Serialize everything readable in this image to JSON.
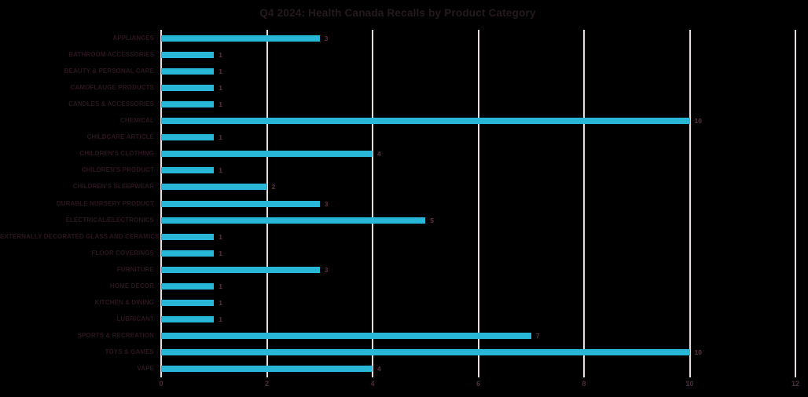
{
  "page": {
    "background_color": "#000000"
  },
  "chart_data": {
    "type": "bar",
    "orientation": "horizontal",
    "title": "Q4 2024: Health Canada Recalls by Product Category",
    "categories": [
      "APPLIANCES",
      "BATHROOM ACCESSORIES",
      "BEAUTY & PERSONAL CARE",
      "CAMOFLAUGE PRODUCTS",
      "CANDLES & ACCESSORIES",
      "CHEMICAL",
      "CHILDCARE ARTICLE",
      "CHILDREN'S CLOTHING",
      "CHILDREN'S PRODUCT",
      "CHILDREN'S SLEEPWEAR",
      "DURABLE NURSERY PRODUCT",
      "ELECTRICAL/ELECTRONICS",
      "EXTERNALLY DECORATED GLASS AND CERAMICS",
      "FLOOR COVERINGS",
      "FURNITURE",
      "HOME DÉCOR",
      "KITCHEN & DINING",
      "LUBRICANT",
      "SPORTS & RECREATION",
      "TOYS & GAMES",
      "VAPE"
    ],
    "values": [
      3,
      1,
      1,
      1,
      1,
      10,
      1,
      4,
      1,
      2,
      3,
      5,
      1,
      1,
      3,
      1,
      1,
      1,
      7,
      10,
      4
    ],
    "data_labels_shown": true,
    "xlabel": "",
    "ylabel": "",
    "xlim": [
      0,
      12
    ],
    "x_ticks": [
      0,
      2,
      4,
      6,
      8,
      10,
      12
    ],
    "grid": "vertical",
    "legend": "none",
    "colors": {
      "bar": "#29b7d7",
      "gridline": "#e6dce1",
      "title": "#241a1e",
      "category_label": "#2b161f",
      "value_label": "#5d3145",
      "tick_label": "#4f2c42",
      "background": "#000000"
    }
  }
}
